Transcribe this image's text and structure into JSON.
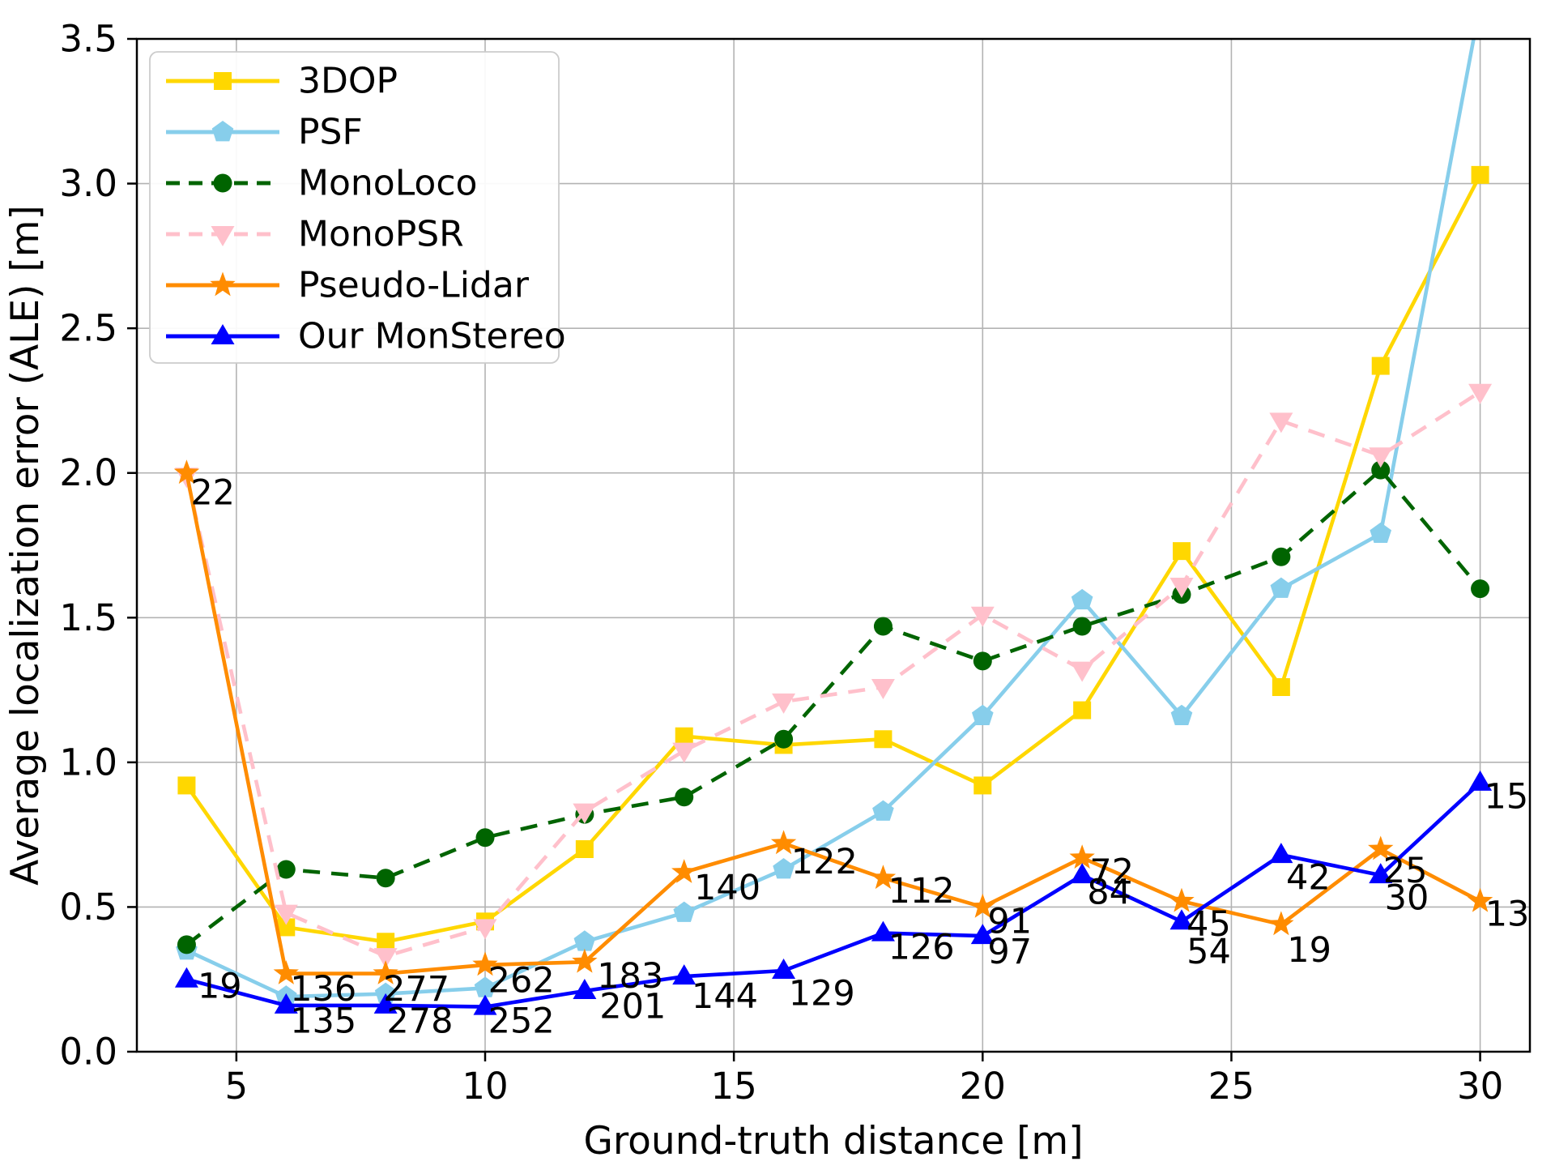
{
  "chart_data": {
    "type": "line",
    "title": "",
    "xlabel": "Ground-truth distance [m]",
    "ylabel": "Average localization error (ALE) [m]",
    "x": [
      4,
      6,
      8,
      10,
      12,
      14,
      16,
      18,
      20,
      22,
      24,
      26,
      28,
      30
    ],
    "xlim": [
      3,
      31
    ],
    "ylim": [
      0,
      3.5
    ],
    "xticks": [
      "5",
      "10",
      "15",
      "20",
      "25",
      "30"
    ],
    "yticks": [
      "0.0",
      "0.5",
      "1.0",
      "1.5",
      "2.0",
      "2.5",
      "3.0",
      "3.5"
    ],
    "grid": true,
    "grid_color": "#b3b3b3",
    "legend_position": "upper left",
    "series": [
      {
        "name": "3DOP",
        "color": "#FFD700",
        "marker": "square",
        "line": "solid",
        "values": [
          0.92,
          0.43,
          0.38,
          0.45,
          0.7,
          1.09,
          1.06,
          1.08,
          0.92,
          1.18,
          1.73,
          1.26,
          2.37,
          3.03
        ]
      },
      {
        "name": "PSF",
        "color": "#87CEEB",
        "marker": "pentagon",
        "line": "solid",
        "values": [
          0.35,
          0.19,
          0.2,
          0.22,
          0.38,
          0.48,
          0.63,
          0.83,
          1.16,
          1.56,
          1.16,
          1.6,
          1.79,
          3.62
        ]
      },
      {
        "name": "MonoLoco",
        "color": "#006400",
        "marker": "circle",
        "line": "dashed",
        "values": [
          0.37,
          0.63,
          0.6,
          0.74,
          0.82,
          0.88,
          1.08,
          1.47,
          1.35,
          1.47,
          1.58,
          1.71,
          2.01,
          1.6
        ]
      },
      {
        "name": "MonoPSR",
        "color": "#FFC0CB",
        "marker": "triangle-down",
        "line": "dashed",
        "values": [
          1.99,
          0.48,
          0.33,
          0.43,
          0.83,
          1.04,
          1.21,
          1.26,
          1.51,
          1.32,
          1.61,
          2.18,
          2.06,
          2.28
        ]
      },
      {
        "name": "Pseudo-Lidar",
        "color": "#FF8C00",
        "marker": "star",
        "line": "solid",
        "values": [
          2.0,
          0.27,
          0.27,
          0.3,
          0.31,
          0.62,
          0.72,
          0.6,
          0.5,
          0.67,
          0.52,
          0.44,
          0.7,
          0.52
        ]
      },
      {
        "name": "Our MonStereo",
        "color": "#0000FF",
        "marker": "triangle-up",
        "line": "solid",
        "values": [
          0.25,
          0.16,
          0.16,
          0.155,
          0.21,
          0.26,
          0.28,
          0.41,
          0.4,
          0.61,
          0.45,
          0.68,
          0.61,
          0.93
        ]
      }
    ],
    "annotations": [
      {
        "text": "22",
        "x": 4.08,
        "y": 1.93
      },
      {
        "text": "19",
        "x": 4.22,
        "y": 0.225
      },
      {
        "text": "136",
        "x": 6.08,
        "y": 0.215
      },
      {
        "text": "135",
        "x": 6.08,
        "y": 0.105
      },
      {
        "text": "277",
        "x": 7.95,
        "y": 0.215
      },
      {
        "text": "278",
        "x": 8.02,
        "y": 0.105
      },
      {
        "text": "262",
        "x": 10.06,
        "y": 0.245
      },
      {
        "text": "252",
        "x": 10.06,
        "y": 0.105
      },
      {
        "text": "183",
        "x": 12.25,
        "y": 0.26
      },
      {
        "text": "201",
        "x": 12.3,
        "y": 0.155
      },
      {
        "text": "140",
        "x": 14.2,
        "y": 0.565
      },
      {
        "text": "144",
        "x": 14.15,
        "y": 0.19
      },
      {
        "text": "122",
        "x": 16.15,
        "y": 0.655
      },
      {
        "text": "129",
        "x": 16.1,
        "y": 0.2
      },
      {
        "text": "112",
        "x": 18.1,
        "y": 0.555
      },
      {
        "text": "126",
        "x": 18.1,
        "y": 0.36
      },
      {
        "text": "91",
        "x": 20.1,
        "y": 0.45
      },
      {
        "text": "97",
        "x": 20.1,
        "y": 0.345
      },
      {
        "text": "72",
        "x": 22.15,
        "y": 0.62
      },
      {
        "text": "84",
        "x": 22.1,
        "y": 0.55
      },
      {
        "text": "45",
        "x": 24.1,
        "y": 0.44
      },
      {
        "text": "54",
        "x": 24.1,
        "y": 0.345
      },
      {
        "text": "42",
        "x": 26.1,
        "y": 0.6
      },
      {
        "text": "19",
        "x": 26.12,
        "y": 0.35
      },
      {
        "text": "25",
        "x": 28.05,
        "y": 0.625
      },
      {
        "text": "30",
        "x": 28.08,
        "y": 0.53
      },
      {
        "text": "15",
        "x": 30.08,
        "y": 0.88
      },
      {
        "text": "13",
        "x": 30.1,
        "y": 0.475
      }
    ]
  }
}
